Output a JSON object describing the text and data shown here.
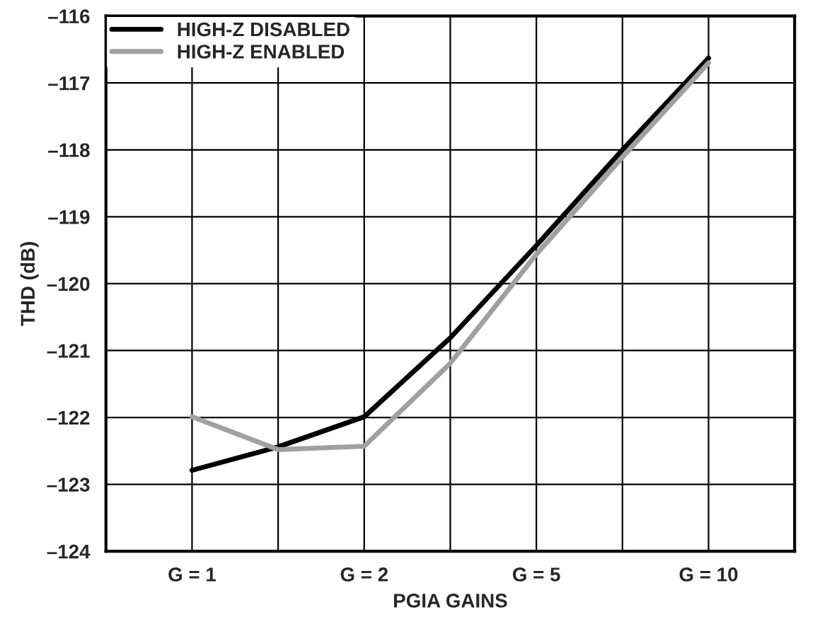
{
  "chart_data": {
    "type": "line",
    "xlabel": "PGIA GAINS",
    "ylabel": "THD (dB)",
    "categories": [
      "G = 1",
      null,
      "G = 2",
      null,
      "G = 5",
      null,
      "G = 10"
    ],
    "ylim": [
      -124,
      -116
    ],
    "yticks": [
      {
        "value": -124,
        "label": "–124"
      },
      {
        "value": -123,
        "label": "–123"
      },
      {
        "value": -122,
        "label": "–122"
      },
      {
        "value": -121,
        "label": "–121"
      },
      {
        "value": -120,
        "label": "–120"
      },
      {
        "value": -119,
        "label": "–119"
      },
      {
        "value": -118,
        "label": "–118"
      },
      {
        "value": -117,
        "label": "–117"
      },
      {
        "value": -116,
        "label": "–116"
      }
    ],
    "grid": true,
    "legend": "top left",
    "line_style": "solid",
    "series": [
      {
        "name": "HIGH-Z DISABLED",
        "color": "#000000",
        "values": [
          -122.79,
          -122.44,
          -121.99,
          -120.81,
          -119.43,
          -118.0,
          -116.63
        ]
      },
      {
        "name": "HIGH-Z ENABLED",
        "color": "#a0a0a0",
        "values": [
          -121.99,
          -122.48,
          -122.43,
          -121.19,
          -119.56,
          -118.11,
          -116.7
        ]
      }
    ]
  }
}
